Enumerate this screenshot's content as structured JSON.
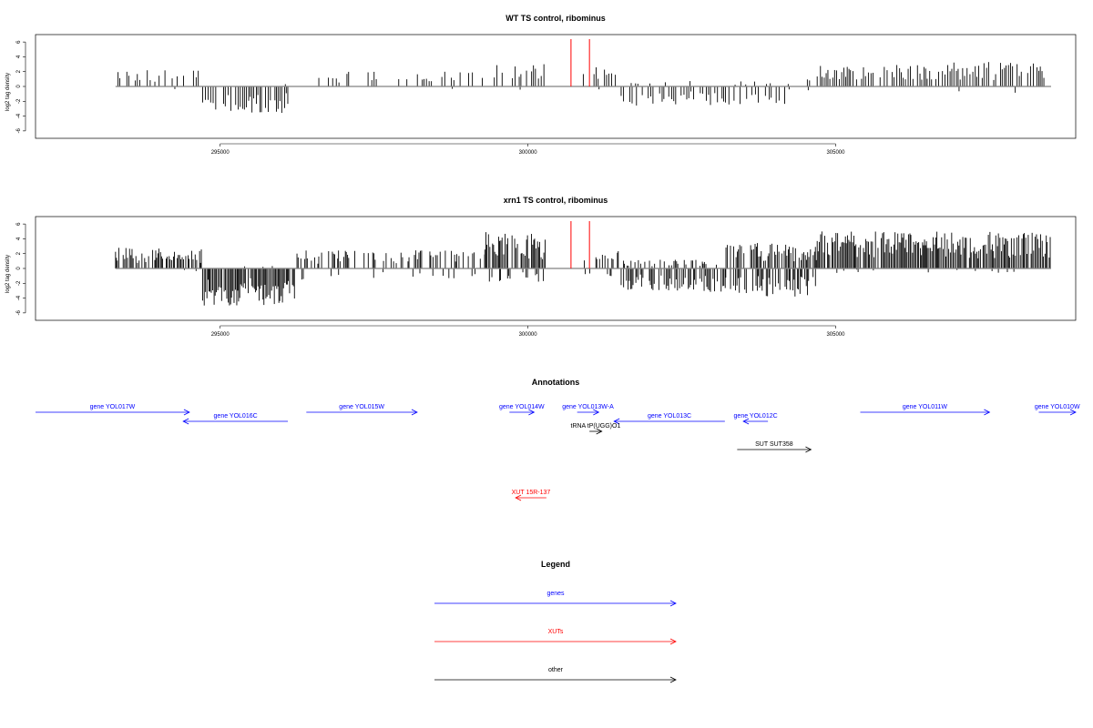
{
  "chart_data": [
    {
      "type": "bar",
      "title": "WT TS control, ribominus",
      "ylabel": "log2 tag density",
      "xlim": [
        292000,
        308900
      ],
      "ylim": [
        -7,
        7
      ],
      "yticks": [
        6,
        4,
        2,
        0,
        -2,
        -4,
        -6
      ],
      "xticks": [
        295000,
        300000,
        305000
      ],
      "xtick_labels": [
        "295000",
        "300000",
        "305000"
      ],
      "markers": {
        "color": "#ff0000",
        "x": [
          300700,
          301000
        ]
      },
      "colors": {
        "bars": "#000000",
        "baseline": "#808080"
      },
      "density_level": 1,
      "segments": [
        [
          293300,
          294700,
          0.45,
          2.2,
          0.02,
          0.5
        ],
        [
          294700,
          296100,
          0.05,
          0.5,
          0.85,
          3.6
        ],
        [
          296400,
          299300,
          0.3,
          2.0,
          0.02,
          0.4
        ],
        [
          299300,
          300300,
          0.55,
          3.0,
          0.03,
          0.5
        ],
        [
          300300,
          300900,
          0.0,
          0.0,
          0.0,
          0.0
        ],
        [
          300900,
          301500,
          0.4,
          2.6,
          0.05,
          0.5
        ],
        [
          301500,
          304200,
          0.15,
          0.8,
          0.55,
          2.6
        ],
        [
          304200,
          304700,
          0.2,
          1.0,
          0.1,
          0.7
        ],
        [
          304700,
          308400,
          0.8,
          3.3,
          0.03,
          0.9
        ],
        [
          308400,
          308500,
          0.0,
          0.0,
          0.0,
          0.0
        ]
      ]
    },
    {
      "type": "bar",
      "title": "xrn1 TS control, ribominus",
      "ylabel": "log2 tag density",
      "xlim": [
        292000,
        308900
      ],
      "ylim": [
        -7,
        7
      ],
      "yticks": [
        6,
        4,
        2,
        0,
        -2,
        -4,
        -6
      ],
      "xticks": [
        295000,
        300000,
        305000
      ],
      "xtick_labels": [
        "295000",
        "300000",
        "305000"
      ],
      "markers": {
        "color": "#ff0000",
        "x": [
          300700,
          301000
        ]
      },
      "colors": {
        "bars": "#000000",
        "baseline": "#808080"
      },
      "density_level": 2,
      "segments": [
        [
          293300,
          294700,
          0.7,
          2.8,
          0.02,
          0.5
        ],
        [
          294700,
          296200,
          0.05,
          0.6,
          0.95,
          5.0
        ],
        [
          296200,
          299300,
          0.4,
          2.5,
          0.15,
          1.5
        ],
        [
          299300,
          300300,
          0.85,
          5.0,
          0.25,
          2.0
        ],
        [
          300300,
          300900,
          0.0,
          0.0,
          0.0,
          0.0
        ],
        [
          300900,
          301500,
          0.4,
          2.6,
          0.25,
          1.2
        ],
        [
          301500,
          303200,
          0.3,
          1.2,
          0.6,
          3.3
        ],
        [
          303200,
          304700,
          0.7,
          3.5,
          0.65,
          3.8
        ],
        [
          304700,
          308500,
          0.95,
          5.0,
          0.05,
          0.6
        ]
      ]
    }
  ],
  "annotations": {
    "title": "Annotations",
    "tracks": [
      {
        "label": "gene YOL017W",
        "color": "#0000ff",
        "row": 0,
        "x1": 292000,
        "x2": 294500
      },
      {
        "label": "gene YOL016C",
        "color": "#0000ff",
        "row": 1,
        "x1": 296100,
        "x2": 294400
      },
      {
        "label": "gene YOL015W",
        "color": "#0000ff",
        "row": 0,
        "x1": 296400,
        "x2": 298200
      },
      {
        "label": "gene YOL014W",
        "color": "#0000ff",
        "row": 0,
        "x1": 299700,
        "x2": 300100
      },
      {
        "label": "gene YOL013W-A",
        "color": "#0000ff",
        "row": 0,
        "x1": 300800,
        "x2": 301150
      },
      {
        "label": "gene YOL013C",
        "color": "#0000ff",
        "row": 1,
        "x1": 303200,
        "x2": 301400
      },
      {
        "label": "gene YOL012C",
        "color": "#0000ff",
        "row": 1,
        "x1": 303900,
        "x2": 303500
      },
      {
        "label": "gene YOL011W",
        "color": "#0000ff",
        "row": 0,
        "x1": 305400,
        "x2": 307500
      },
      {
        "label": "gene YOL010W",
        "color": "#0000ff",
        "row": 0,
        "x1": 308300,
        "x2": 309200
      },
      {
        "label": "tRNA tP(UGG)O1",
        "color": "#000000",
        "row": 2,
        "x1": 301000,
        "x2": 301200
      },
      {
        "label": "SUT SUT358",
        "color": "#000000",
        "row": 3,
        "x1": 303400,
        "x2": 304600
      },
      {
        "label": "XUT 15R-137",
        "color": "#ff0000",
        "row": 4,
        "x1": 300300,
        "x2": 299800
      }
    ]
  },
  "legend": {
    "title": "Legend",
    "items": [
      {
        "label": "genes",
        "color": "#0000ff"
      },
      {
        "label": "XUTs",
        "color": "#ff0000"
      },
      {
        "label": "other",
        "color": "#000000"
      }
    ]
  }
}
